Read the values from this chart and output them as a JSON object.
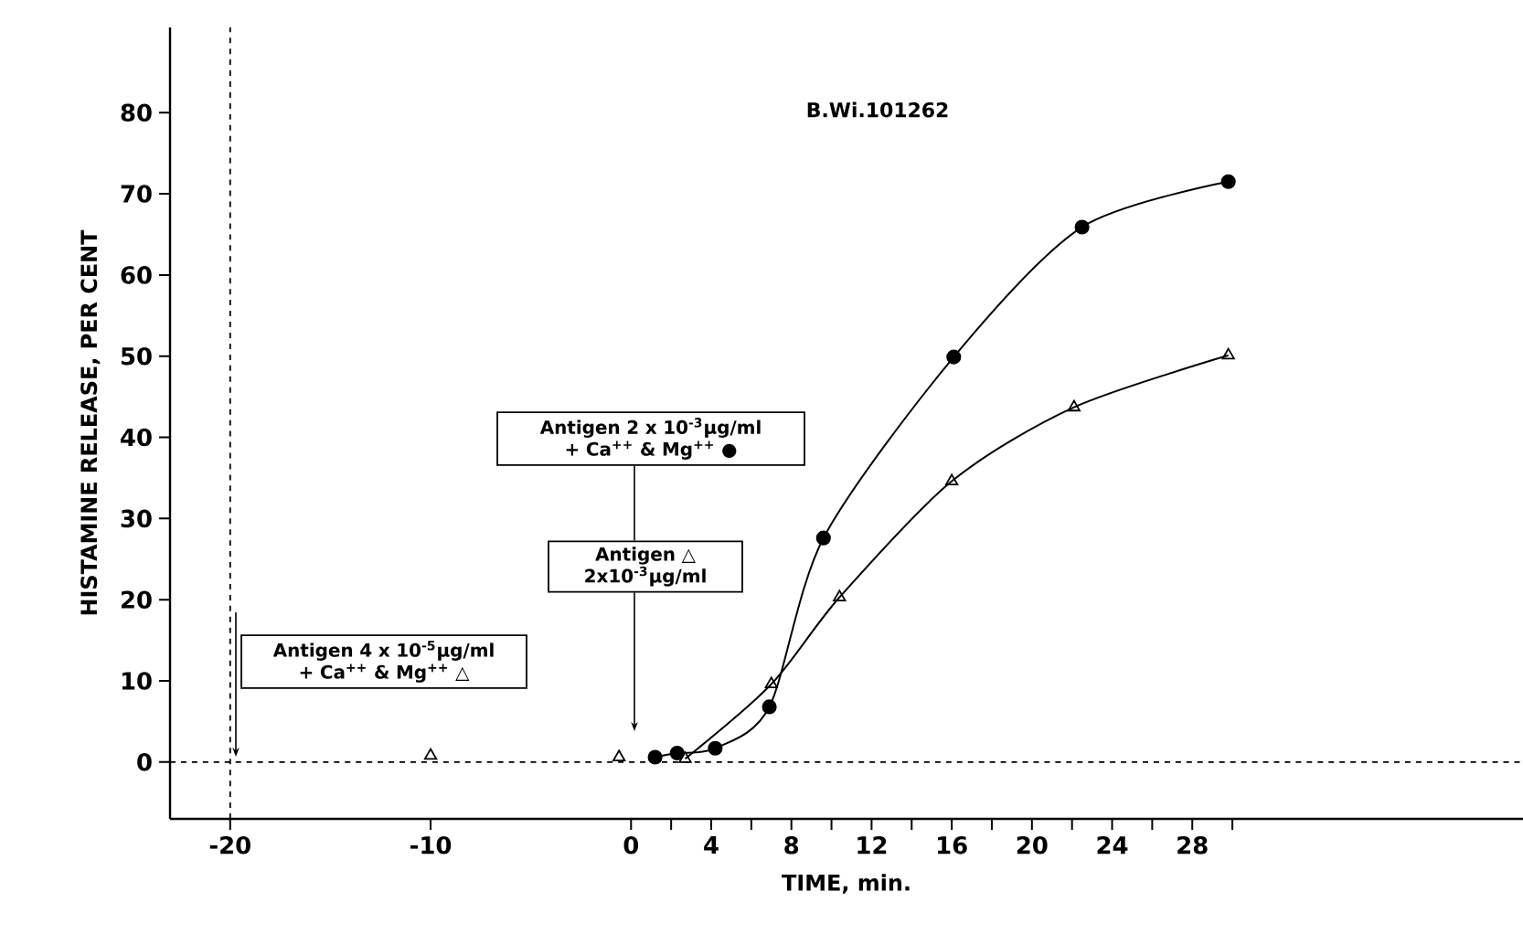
{
  "chart_data": {
    "type": "line",
    "xlabel": "TIME, min.",
    "ylabel": "HISTAMINE RELEASE, PER CENT",
    "xlim": [
      -23,
      44.5
    ],
    "ylim": [
      -7,
      90.5
    ],
    "xticks": [
      -20,
      -10,
      0,
      {
        "value": 2,
        "label": null
      },
      4,
      {
        "value": 6,
        "label": null
      },
      8,
      {
        "value": 10,
        "label": null
      },
      12,
      {
        "value": 14,
        "label": null
      },
      16,
      {
        "value": 18,
        "label": null
      },
      20,
      {
        "value": 22,
        "label": null
      },
      24,
      {
        "value": 26,
        "label": null
      },
      28,
      {
        "value": 30,
        "label": null
      }
    ],
    "yticks": [
      0,
      10,
      20,
      30,
      40,
      50,
      60,
      70,
      80
    ],
    "series": [
      {
        "marker": "circle",
        "line_style": "solid",
        "color": "#000000",
        "x": [
          1.2,
          2.3,
          4.2,
          6.9,
          9.6,
          16.1,
          22.5,
          29.8
        ],
        "values": [
          0.6,
          1.1,
          1.7,
          6.8,
          27.6,
          49.9,
          65.9,
          71.5
        ]
      },
      {
        "marker": "triangle",
        "line_style": "solid",
        "color": "#000000",
        "x": [
          2.7,
          7.0,
          10.4,
          16.0,
          22.1,
          29.8
        ],
        "values": [
          0.4,
          9.6,
          20.3,
          34.6,
          43.7,
          50.1
        ]
      },
      {
        "type": "scatter",
        "marker": "triangle",
        "color": "#000000",
        "x": [
          -10.0,
          -0.6
        ],
        "values": [
          0.8,
          0.6
        ]
      }
    ],
    "ref_lines": [
      {
        "axis": "y",
        "value": 0,
        "line_style": "dashed",
        "color": "#000000"
      },
      {
        "axis": "x",
        "value": -20,
        "line_style": "dashed",
        "color": "#000000"
      }
    ],
    "annotations": [
      "B.Wi.101262",
      "Antigen 4 x 10$^{-5}$µg/ml + Ca$^{++}$ & Mg$^{++}$ △",
      "Antigen 2 x 10$^{-3}$µg/ml + Ca$^{++}$ & Mg$^{++}$ ●",
      "Antigen △ 2x10$^{-3}$µg/ml"
    ]
  }
}
